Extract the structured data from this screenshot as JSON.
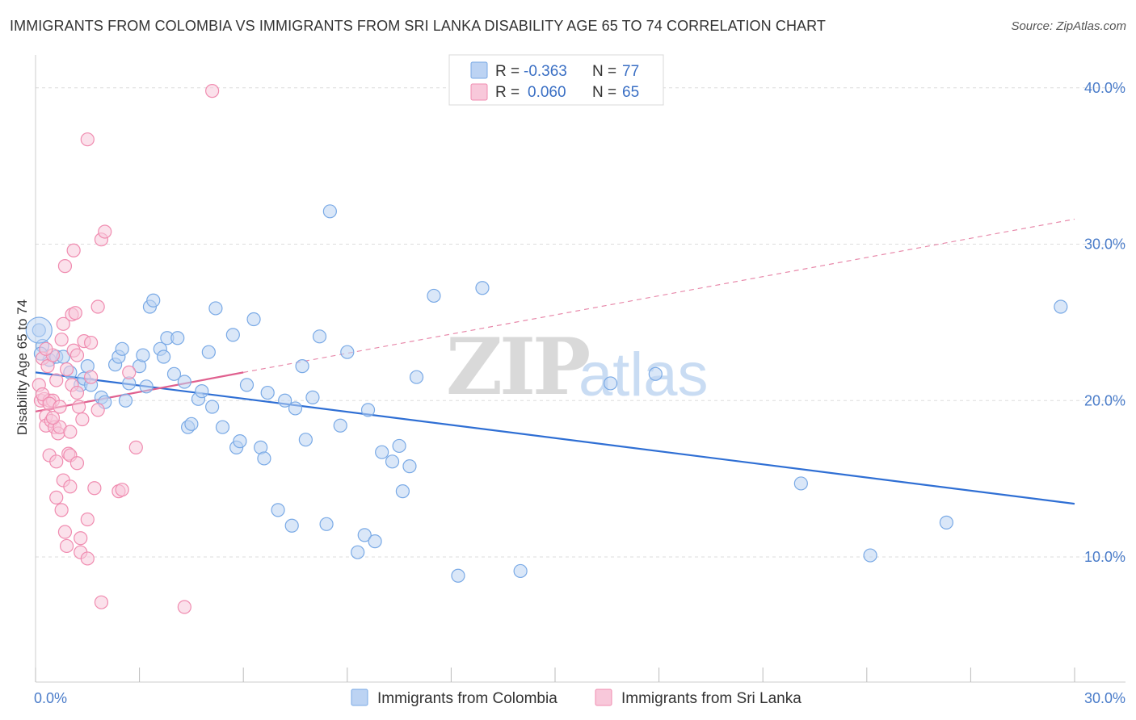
{
  "title": "IMMIGRANTS FROM COLOMBIA VS IMMIGRANTS FROM SRI LANKA DISABILITY AGE 65 TO 74 CORRELATION CHART",
  "source": "Source: ZipAtlas.com",
  "watermark": {
    "zip": "ZIP",
    "atlas": "atlas"
  },
  "legend_top": [
    {
      "r_label": "R =",
      "r_value": "-0.363",
      "n_label": "N =",
      "n_value": "77",
      "color": "#7aaae6",
      "fill": "#bcd3f3"
    },
    {
      "r_label": "R =",
      "r_value": "0.060",
      "n_label": "N =",
      "n_value": "65",
      "color": "#f08cb0",
      "fill": "#f8c8da"
    }
  ],
  "legend_bottom": [
    {
      "label": "Immigrants from Colombia",
      "color": "#7aaae6",
      "fill": "#bcd3f3"
    },
    {
      "label": "Immigrants from Sri Lanka",
      "color": "#f08cb0",
      "fill": "#f8c8da"
    }
  ],
  "chart_data": {
    "type": "scatter",
    "title": "IMMIGRANTS FROM COLOMBIA VS IMMIGRANTS FROM SRI LANKA DISABILITY AGE 65 TO 74 CORRELATION CHART",
    "xlabel": "",
    "ylabel": "Disability Age 65 to 74",
    "xlim": [
      0,
      30
    ],
    "ylim": [
      2,
      42
    ],
    "x_ticks_labeled": [
      "0.0%",
      "30.0%"
    ],
    "y_ticks": [
      10,
      20,
      30,
      40
    ],
    "y_tick_labels": [
      "10.0%",
      "20.0%",
      "30.0%",
      "40.0%"
    ],
    "grid": true,
    "legend_position": "top-center",
    "series": [
      {
        "name": "Immigrants from Colombia",
        "color": "#7aaae6",
        "R": -0.363,
        "N": 77,
        "trend": {
          "x": [
            0,
            30
          ],
          "y": [
            21.8,
            13.4
          ],
          "style": "solid"
        },
        "points": [
          [
            0.1,
            24.5
          ],
          [
            0.2,
            23.5
          ],
          [
            0.4,
            22.6
          ],
          [
            0.6,
            22.8
          ],
          [
            0.8,
            22.8
          ],
          [
            1.0,
            21.8
          ],
          [
            1.3,
            21.0
          ],
          [
            1.4,
            21.4
          ],
          [
            1.5,
            22.2
          ],
          [
            1.6,
            21.0
          ],
          [
            1.9,
            20.2
          ],
          [
            2.0,
            19.9
          ],
          [
            2.3,
            22.3
          ],
          [
            2.4,
            22.8
          ],
          [
            2.5,
            23.3
          ],
          [
            2.6,
            20.0
          ],
          [
            2.7,
            21.1
          ],
          [
            3.0,
            22.2
          ],
          [
            3.1,
            22.9
          ],
          [
            3.2,
            20.9
          ],
          [
            3.3,
            26.0
          ],
          [
            3.4,
            26.4
          ],
          [
            3.6,
            23.3
          ],
          [
            3.7,
            22.8
          ],
          [
            3.8,
            24.0
          ],
          [
            4.0,
            21.7
          ],
          [
            4.1,
            24.0
          ],
          [
            4.3,
            21.2
          ],
          [
            4.4,
            18.3
          ],
          [
            4.5,
            18.5
          ],
          [
            4.7,
            20.1
          ],
          [
            4.8,
            20.6
          ],
          [
            5.0,
            23.1
          ],
          [
            5.1,
            19.6
          ],
          [
            5.2,
            25.9
          ],
          [
            5.4,
            18.3
          ],
          [
            5.7,
            24.2
          ],
          [
            5.8,
            17.0
          ],
          [
            5.9,
            17.4
          ],
          [
            6.1,
            21.0
          ],
          [
            6.3,
            25.2
          ],
          [
            6.5,
            17.0
          ],
          [
            6.6,
            16.3
          ],
          [
            6.7,
            20.5
          ],
          [
            7.0,
            13.0
          ],
          [
            7.2,
            20.0
          ],
          [
            7.4,
            12.0
          ],
          [
            7.5,
            19.5
          ],
          [
            7.7,
            22.2
          ],
          [
            7.8,
            17.5
          ],
          [
            8.0,
            20.2
          ],
          [
            8.2,
            24.1
          ],
          [
            8.4,
            12.1
          ],
          [
            8.5,
            32.1
          ],
          [
            8.8,
            18.4
          ],
          [
            9.0,
            23.1
          ],
          [
            9.3,
            10.3
          ],
          [
            9.5,
            11.4
          ],
          [
            9.6,
            19.4
          ],
          [
            9.8,
            11.0
          ],
          [
            10.0,
            16.7
          ],
          [
            10.3,
            16.1
          ],
          [
            10.5,
            17.1
          ],
          [
            10.6,
            14.2
          ],
          [
            10.8,
            15.8
          ],
          [
            11.0,
            21.5
          ],
          [
            11.5,
            26.7
          ],
          [
            12.2,
            8.8
          ],
          [
            12.9,
            27.2
          ],
          [
            14.0,
            9.1
          ],
          [
            16.6,
            21.1
          ],
          [
            17.9,
            21.7
          ],
          [
            22.1,
            14.7
          ],
          [
            24.1,
            10.1
          ],
          [
            26.3,
            12.2
          ],
          [
            29.6,
            26.0
          ],
          [
            0.15,
            23.0
          ]
        ]
      },
      {
        "name": "Immigrants from Sri Lanka",
        "color": "#f08cb0",
        "R": 0.06,
        "N": 65,
        "trend": {
          "x": [
            0,
            6.0
          ],
          "y": [
            19.3,
            21.8
          ],
          "style": "solid"
        },
        "trend_ext": {
          "x": [
            6.0,
            30
          ],
          "y": [
            21.8,
            31.6
          ],
          "style": "dashed"
        },
        "points": [
          [
            0.1,
            21.0
          ],
          [
            0.15,
            20.0
          ],
          [
            0.2,
            22.7
          ],
          [
            0.25,
            20.1
          ],
          [
            0.3,
            19.0
          ],
          [
            0.3,
            18.4
          ],
          [
            0.35,
            22.2
          ],
          [
            0.4,
            20.0
          ],
          [
            0.4,
            16.5
          ],
          [
            0.45,
            18.7
          ],
          [
            0.5,
            20.0
          ],
          [
            0.5,
            22.9
          ],
          [
            0.55,
            18.3
          ],
          [
            0.6,
            13.8
          ],
          [
            0.6,
            21.3
          ],
          [
            0.65,
            17.9
          ],
          [
            0.7,
            18.3
          ],
          [
            0.75,
            13.0
          ],
          [
            0.75,
            23.9
          ],
          [
            0.8,
            24.9
          ],
          [
            0.8,
            14.9
          ],
          [
            0.85,
            11.6
          ],
          [
            0.85,
            28.6
          ],
          [
            0.9,
            10.7
          ],
          [
            0.95,
            16.6
          ],
          [
            1.0,
            16.5
          ],
          [
            1.0,
            14.5
          ],
          [
            1.05,
            21.0
          ],
          [
            1.05,
            25.5
          ],
          [
            1.1,
            23.2
          ],
          [
            1.1,
            29.6
          ],
          [
            1.15,
            25.6
          ],
          [
            1.2,
            20.5
          ],
          [
            1.2,
            16.0
          ],
          [
            1.25,
            19.6
          ],
          [
            1.3,
            10.3
          ],
          [
            1.3,
            11.2
          ],
          [
            1.35,
            18.8
          ],
          [
            1.4,
            23.8
          ],
          [
            1.5,
            36.7
          ],
          [
            1.5,
            9.9
          ],
          [
            1.5,
            12.4
          ],
          [
            1.6,
            21.5
          ],
          [
            1.6,
            23.7
          ],
          [
            1.7,
            14.4
          ],
          [
            1.8,
            26.0
          ],
          [
            1.8,
            19.4
          ],
          [
            1.9,
            7.1
          ],
          [
            1.9,
            30.3
          ],
          [
            2.0,
            30.8
          ],
          [
            2.4,
            14.2
          ],
          [
            2.5,
            14.3
          ],
          [
            2.7,
            21.8
          ],
          [
            2.9,
            17.0
          ],
          [
            4.3,
            6.8
          ],
          [
            5.1,
            39.8
          ],
          [
            0.2,
            20.4
          ],
          [
            0.4,
            19.8
          ],
          [
            0.5,
            18.9
          ],
          [
            0.6,
            16.1
          ],
          [
            0.7,
            19.6
          ],
          [
            1.0,
            18.0
          ],
          [
            1.2,
            22.9
          ],
          [
            0.9,
            22.0
          ],
          [
            0.3,
            23.3
          ]
        ]
      }
    ]
  }
}
